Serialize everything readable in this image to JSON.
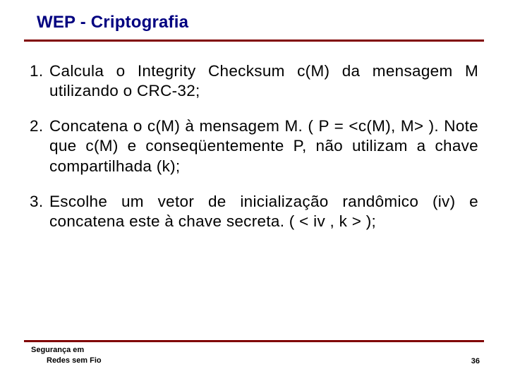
{
  "title": "WEP - Criptografia",
  "colors": {
    "title": "#000080",
    "rule": "#800000",
    "body": "#000000",
    "background": "#ffffff"
  },
  "items": [
    {
      "num": "1.",
      "text": "Calcula o Integrity Checksum c(M) da mensagem M utilizando o CRC-32;"
    },
    {
      "num": "2.",
      "text": "Concatena o c(M) à mensagem M. ( P = <c(M), M> ). Note que c(M) e conseqüentemente P, não utilizam a chave compartilhada (k);"
    },
    {
      "num": "3.",
      "text": "Escolhe um vetor de inicialização randômico (iv) e concatena este à chave secreta. ( < iv , k > );"
    }
  ],
  "footer": {
    "line1": "Segurança em",
    "line2": "Redes sem Fio"
  },
  "page_number": "36"
}
